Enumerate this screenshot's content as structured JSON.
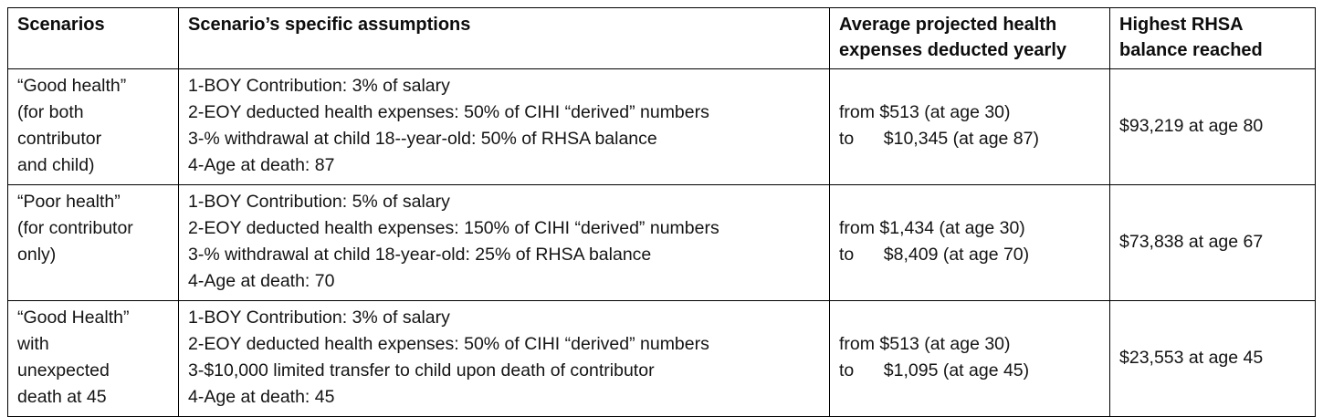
{
  "table": {
    "headers": [
      {
        "lines": [
          "Scenarios"
        ]
      },
      {
        "lines": [
          "Scenario’s specific assumptions"
        ]
      },
      {
        "lines": [
          "Average projected health",
          "expenses deducted yearly"
        ]
      },
      {
        "lines": [
          "Highest RHSA",
          "balance reached"
        ]
      }
    ],
    "rows": [
      {
        "scenario_lines": [
          "“Good health”",
          "(for both",
          "contributor",
          "and child)"
        ],
        "assumptions": [
          "1-BOY Contribution: 3% of salary",
          "2-EOY deducted health expenses: 50% of CIHI “derived” numbers",
          "3-% withdrawal at child 18--year-old: 50% of RHSA balance",
          "4-Age at death: 87"
        ],
        "expenses_lines": [
          "from $513 (at age 30)",
          "to      $10,345 (at age 87)"
        ],
        "balance": "$93,219 at age 80"
      },
      {
        "scenario_lines": [
          "“Poor health”",
          "(for contributor",
          "only)"
        ],
        "assumptions": [
          "1-BOY Contribution: 5% of salary",
          "2-EOY deducted health expenses: 150% of CIHI “derived” numbers",
          "3-% withdrawal at child 18-year-old: 25% of RHSA balance",
          "4-Age at death: 70"
        ],
        "expenses_lines": [
          "from $1,434 (at age 30)",
          "to      $8,409 (at age 70)"
        ],
        "balance": "$73,838 at age 67"
      },
      {
        "scenario_lines": [
          "“Good Health”",
          "with",
          "unexpected",
          "death at 45"
        ],
        "assumptions": [
          "1-BOY Contribution: 3% of salary",
          "2-EOY deducted health expenses: 50% of CIHI “derived” numbers",
          "3-$10,000 limited transfer to child upon death of contributor",
          "4-Age at death: 45"
        ],
        "expenses_lines": [
          "from $513 (at age 30)",
          "to      $1,095 (at age 45)"
        ],
        "balance": "$23,553 at age 45"
      }
    ]
  }
}
